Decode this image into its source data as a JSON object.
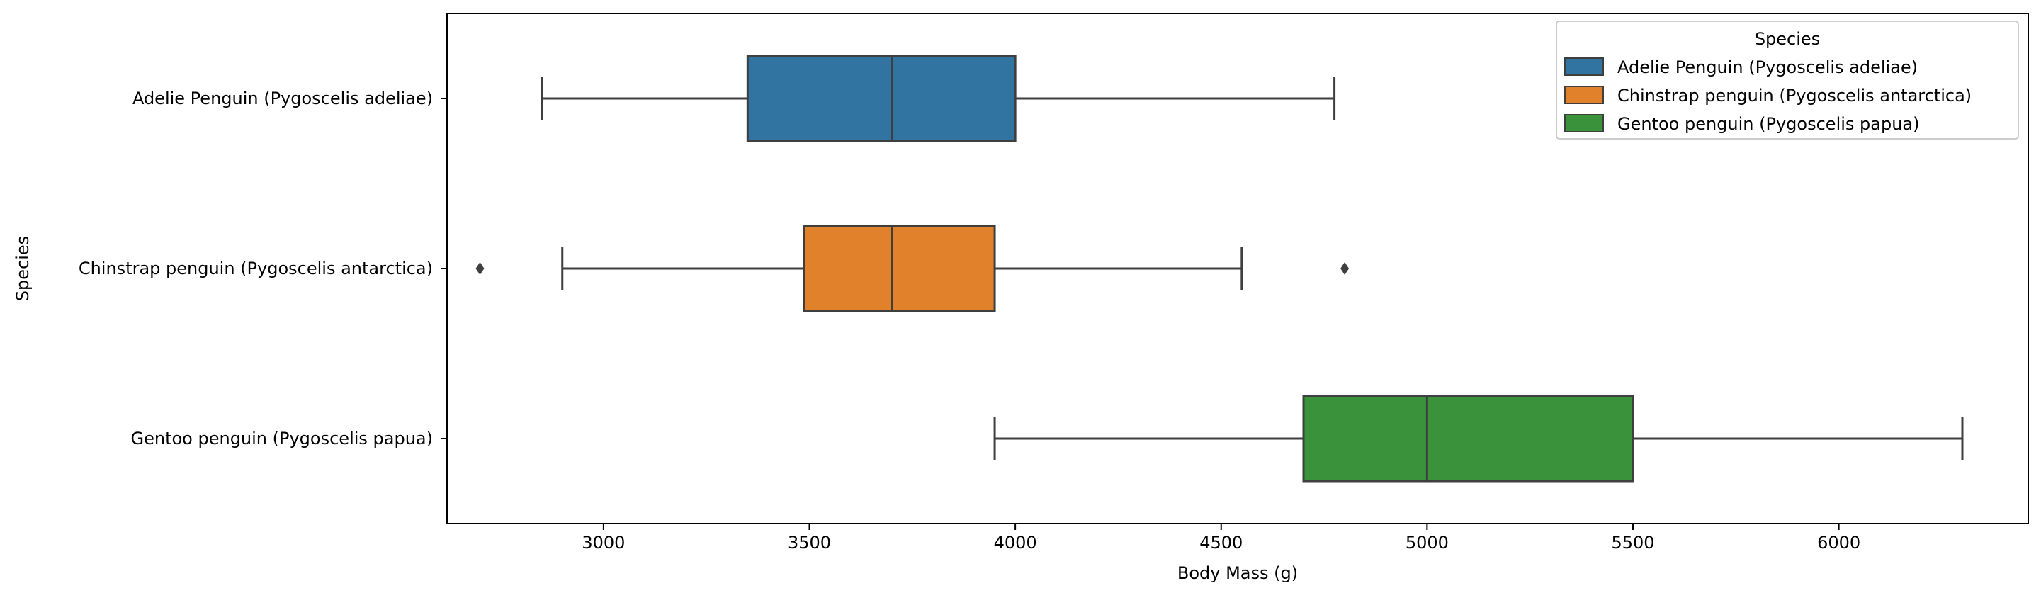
{
  "chart_data": {
    "type": "boxplot",
    "orientation": "horizontal",
    "title": "",
    "xlabel": "Body Mass (g)",
    "ylabel": "Species",
    "xlim": [
      2620,
      6460
    ],
    "x_ticks": [
      3000,
      3500,
      4000,
      4500,
      5000,
      5500,
      6000
    ],
    "categories": [
      "Adelie Penguin (Pygoscelis adeliae)",
      "Chinstrap penguin (Pygoscelis antarctica)",
      "Gentoo penguin (Pygoscelis papua)"
    ],
    "series": [
      {
        "name": "Adelie Penguin (Pygoscelis adeliae)",
        "color": "#3274a1",
        "whisker_low": 2850,
        "q1": 3350,
        "median": 3700,
        "q3": 4000,
        "whisker_high": 4775,
        "outliers": []
      },
      {
        "name": "Chinstrap penguin (Pygoscelis antarctica)",
        "color": "#e1812c",
        "whisker_low": 2900,
        "q1": 3487,
        "median": 3700,
        "q3": 3950,
        "whisker_high": 4550,
        "outliers": [
          2700,
          4800
        ]
      },
      {
        "name": "Gentoo penguin (Pygoscelis papua)",
        "color": "#3a923a",
        "whisker_low": 3950,
        "q1": 4700,
        "median": 5000,
        "q3": 5500,
        "whisker_high": 6300,
        "outliers": []
      }
    ],
    "grid": false,
    "legend": {
      "title": "Species",
      "placement": "top-right"
    }
  }
}
